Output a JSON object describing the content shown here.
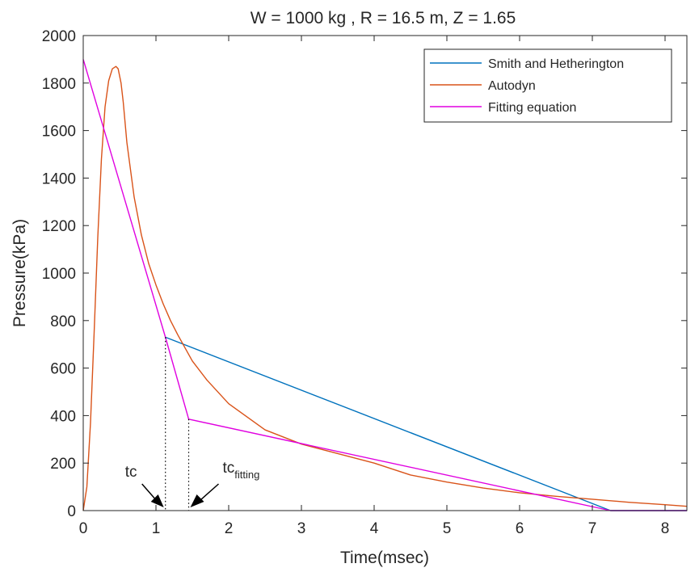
{
  "chart_data": {
    "type": "line",
    "title": "W = 1000 kg , R = 16.5 m, Z = 1.65",
    "xlabel": "Time(msec)",
    "ylabel": "Pressure(kPa)",
    "xlim": [
      0,
      8.3
    ],
    "ylim": [
      0,
      2000
    ],
    "xticks": [
      "0",
      "1",
      "2",
      "3",
      "4",
      "5",
      "6",
      "7",
      "8"
    ],
    "yticks": [
      "0",
      "200",
      "400",
      "600",
      "800",
      "1000",
      "1200",
      "1400",
      "1600",
      "1800",
      "2000"
    ],
    "grid": false,
    "legend_position": "top-right",
    "series": [
      {
        "name": "Smith and Hetherington",
        "color": "#0072BD",
        "x": [
          1.13,
          7.25,
          8.3
        ],
        "y": [
          730,
          0,
          0
        ]
      },
      {
        "name": "Autodyn",
        "color": "#D95319",
        "x": [
          0,
          0.05,
          0.1,
          0.15,
          0.2,
          0.25,
          0.3,
          0.35,
          0.4,
          0.45,
          0.48,
          0.52,
          0.55,
          0.6,
          0.7,
          0.8,
          0.9,
          1.0,
          1.1,
          1.2,
          1.3,
          1.5,
          1.7,
          2.0,
          2.5,
          3.0,
          3.5,
          4.0,
          4.5,
          5.0,
          5.5,
          6.0,
          6.5,
          7.0,
          7.5,
          8.0,
          8.3
        ],
        "y": [
          0,
          100,
          370,
          750,
          1150,
          1480,
          1700,
          1810,
          1860,
          1870,
          1860,
          1800,
          1720,
          1550,
          1320,
          1160,
          1040,
          950,
          870,
          800,
          740,
          630,
          550,
          450,
          340,
          280,
          240,
          200,
          150,
          120,
          95,
          75,
          60,
          48,
          35,
          25,
          18
        ]
      },
      {
        "name": "Fitting equation",
        "color": "#E000E0",
        "x": [
          0,
          1.13,
          1.45,
          7.25,
          8.3
        ],
        "y": [
          1900,
          730,
          385,
          0,
          0
        ]
      }
    ],
    "annotations": [
      {
        "text": "tc",
        "subscript": "",
        "x": 1.13
      },
      {
        "text": "tc",
        "subscript": "fitting",
        "x": 1.45
      }
    ]
  }
}
